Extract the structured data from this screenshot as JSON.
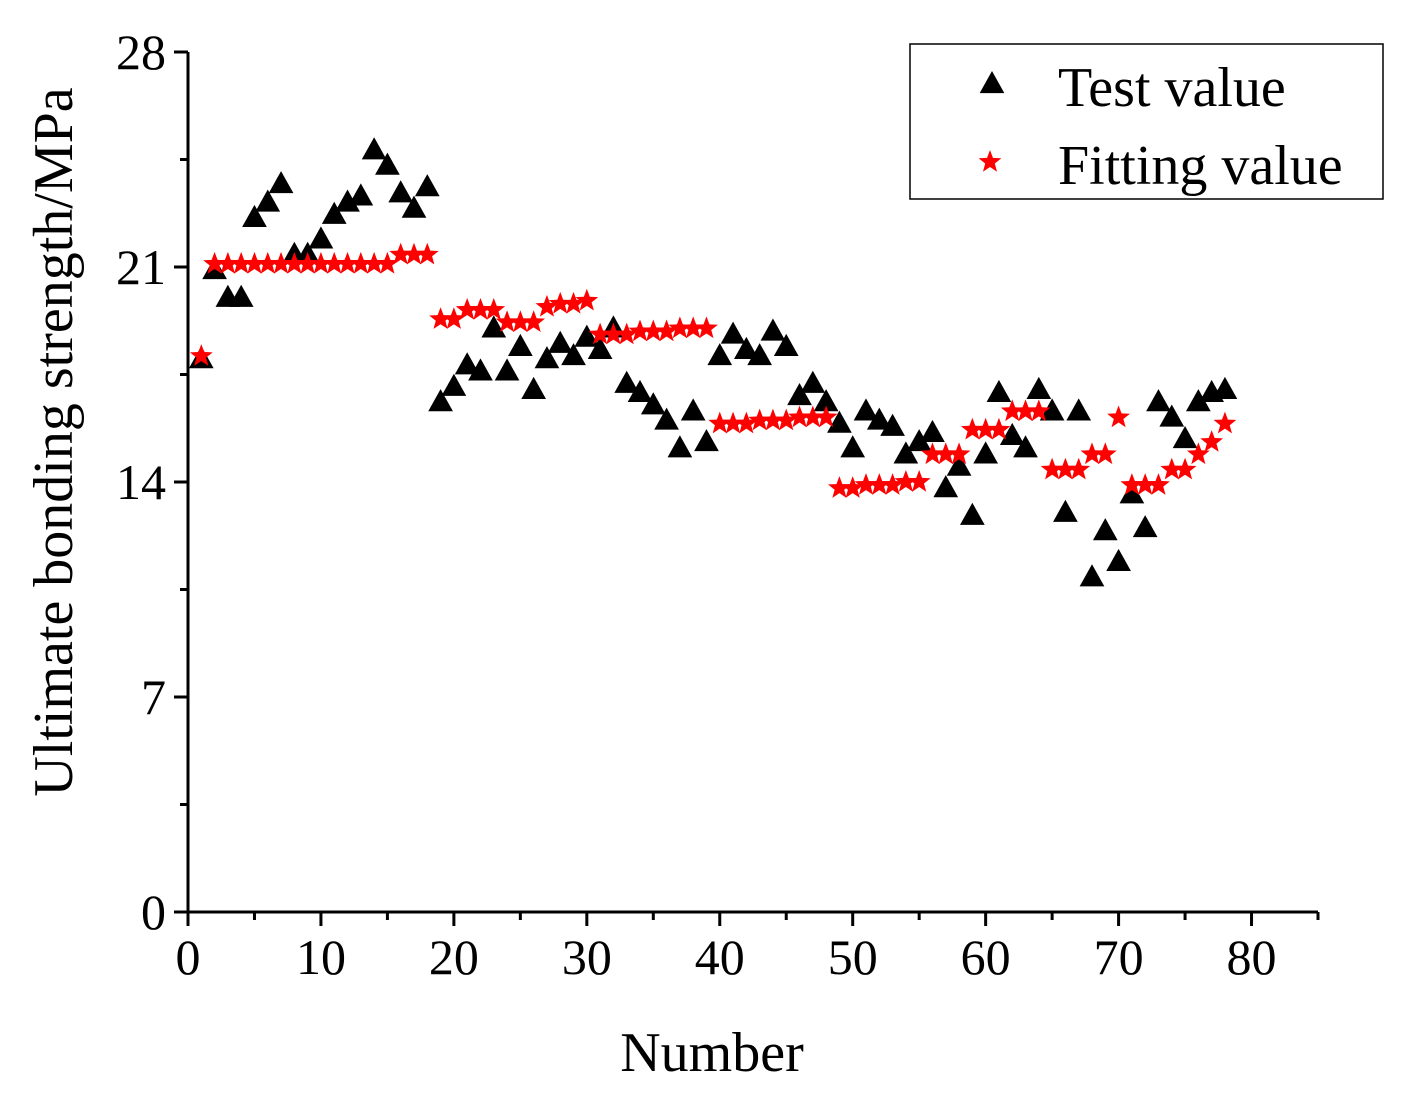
{
  "chart_data": {
    "type": "scatter",
    "title": "",
    "xlabel": "Number",
    "ylabel": "Ultimate bonding strength/MPa",
    "xlim": [
      0,
      85
    ],
    "ylim": [
      0,
      28
    ],
    "x_ticks": [
      0,
      10,
      20,
      30,
      40,
      50,
      60,
      70,
      80
    ],
    "x_tick_labels": [
      "0",
      "10",
      "20",
      "30",
      "40",
      "50",
      "60",
      "70",
      "80"
    ],
    "y_ticks": [
      0,
      7,
      14,
      21,
      28
    ],
    "y_tick_labels": [
      "0",
      "7",
      "14",
      "21",
      "28"
    ],
    "grid": false,
    "legend_position": "top-right",
    "series": [
      {
        "name": "Test value",
        "marker": "triangle",
        "color": "#000000",
        "x": [
          1,
          2,
          3,
          4,
          5,
          6,
          7,
          8,
          9,
          10,
          11,
          12,
          13,
          14,
          15,
          16,
          17,
          18,
          19,
          20,
          21,
          22,
          23,
          24,
          25,
          26,
          27,
          28,
          29,
          30,
          31,
          32,
          33,
          34,
          35,
          36,
          37,
          38,
          39,
          40,
          41,
          42,
          43,
          44,
          45,
          46,
          47,
          48,
          49,
          50,
          51,
          52,
          53,
          54,
          55,
          56,
          57,
          58,
          59,
          60,
          61,
          62,
          63,
          64,
          65,
          66,
          67,
          68,
          69,
          70,
          71,
          72,
          73,
          74,
          75,
          76,
          77,
          78
        ],
        "y": [
          18.0,
          20.9,
          20.0,
          20.0,
          22.6,
          23.1,
          23.7,
          21.4,
          21.4,
          21.9,
          22.7,
          23.1,
          23.3,
          24.8,
          24.3,
          23.4,
          22.9,
          23.6,
          16.6,
          17.1,
          17.8,
          17.6,
          19.0,
          17.6,
          18.4,
          17.0,
          18.0,
          18.5,
          18.1,
          18.7,
          18.3,
          19.0,
          17.2,
          16.9,
          16.5,
          16.0,
          15.1,
          16.3,
          15.3,
          18.1,
          18.8,
          18.3,
          18.1,
          18.9,
          18.4,
          16.8,
          17.2,
          16.6,
          15.9,
          15.1,
          16.3,
          16.0,
          15.8,
          14.9,
          15.3,
          15.6,
          13.8,
          14.5,
          12.9,
          14.9,
          16.9,
          15.5,
          15.1,
          17.0,
          16.3,
          13.0,
          16.3,
          10.9,
          12.4,
          11.4,
          13.6,
          12.5,
          16.6,
          16.1,
          15.4,
          16.6,
          16.9,
          17.0
        ]
      },
      {
        "name": "Fitting value",
        "marker": "star",
        "color": "#ff0000",
        "x": [
          1,
          2,
          3,
          4,
          5,
          6,
          7,
          8,
          9,
          10,
          11,
          12,
          13,
          14,
          15,
          16,
          17,
          18,
          19,
          20,
          21,
          22,
          23,
          24,
          25,
          26,
          27,
          28,
          29,
          30,
          31,
          32,
          33,
          34,
          35,
          36,
          37,
          38,
          39,
          40,
          41,
          42,
          43,
          44,
          45,
          46,
          47,
          48,
          49,
          50,
          51,
          52,
          53,
          54,
          55,
          56,
          57,
          58,
          59,
          60,
          61,
          62,
          63,
          64,
          65,
          66,
          67,
          68,
          69,
          70,
          71,
          72,
          73,
          74,
          75,
          76,
          77,
          78
        ],
        "y": [
          18.1,
          21.1,
          21.1,
          21.1,
          21.1,
          21.1,
          21.1,
          21.1,
          21.1,
          21.1,
          21.1,
          21.1,
          21.1,
          21.1,
          21.1,
          21.4,
          21.4,
          21.4,
          19.3,
          19.3,
          19.6,
          19.6,
          19.6,
          19.2,
          19.2,
          19.2,
          19.7,
          19.8,
          19.8,
          19.9,
          18.8,
          18.8,
          18.8,
          18.9,
          18.9,
          18.9,
          19.0,
          19.0,
          19.0,
          15.9,
          15.9,
          15.9,
          16.0,
          16.0,
          16.0,
          16.1,
          16.1,
          16.1,
          13.8,
          13.8,
          13.9,
          13.9,
          13.9,
          14.0,
          14.0,
          14.9,
          14.9,
          14.9,
          15.7,
          15.7,
          15.7,
          16.3,
          16.3,
          16.3,
          14.4,
          14.4,
          14.4,
          14.9,
          14.9,
          16.1,
          13.9,
          13.9,
          13.9,
          14.4,
          14.4,
          14.9,
          15.3,
          15.9
        ]
      }
    ]
  }
}
